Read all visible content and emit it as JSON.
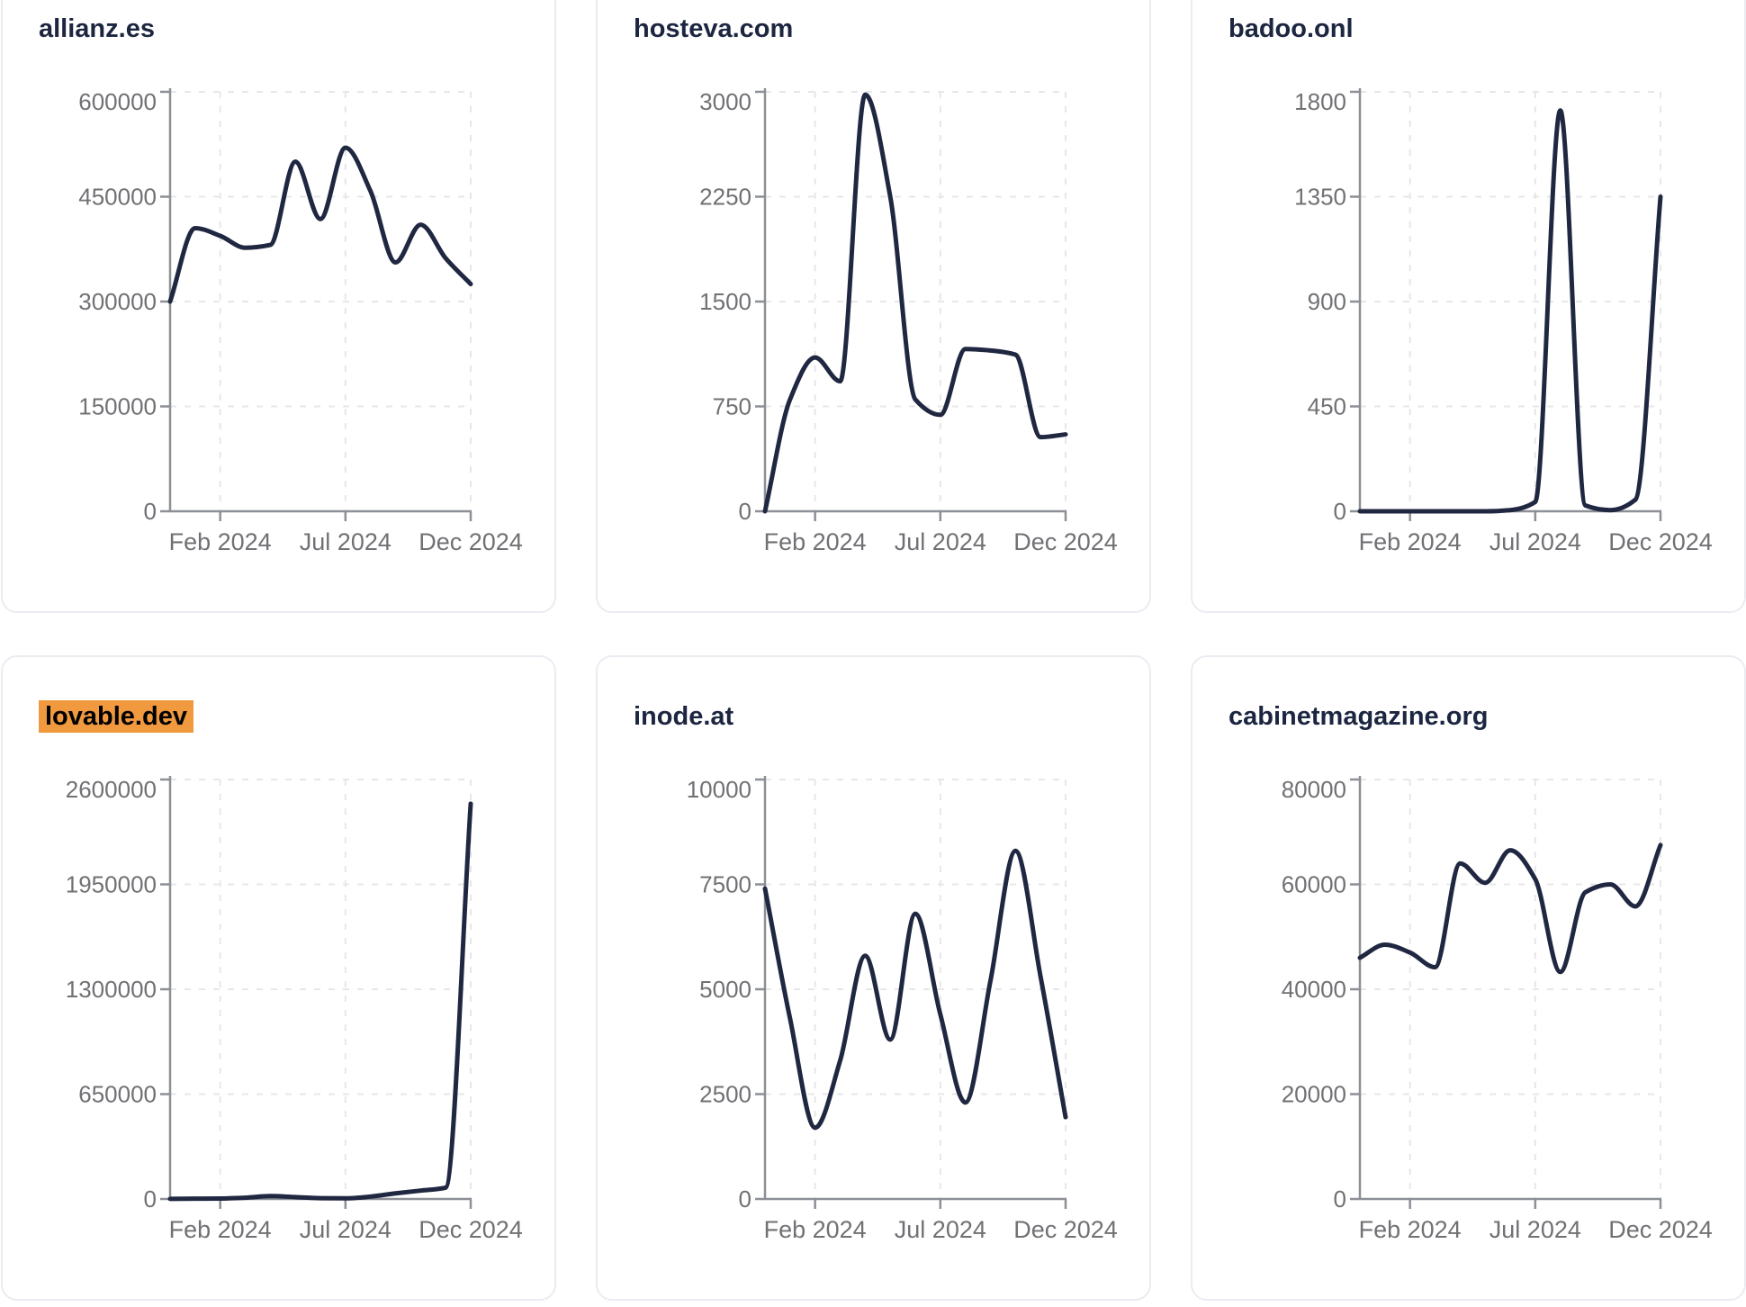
{
  "styles": {
    "page_background": "#ffffff",
    "card_background": "#ffffff",
    "card_border_color": "#eaecf2",
    "title_color": "#1d2640",
    "highlight_color": "#f0993f",
    "highlight_text_color": "#000000",
    "line_color": "#202741",
    "axis_color": "#8c8f95",
    "grid_color": "#e7e7ea",
    "tick_label_color": "#717175"
  },
  "x_axis": {
    "months": [
      "Dec 2023",
      "Jan 2024",
      "Feb 2024",
      "Mar 2024",
      "Apr 2024",
      "May 2024",
      "Jun 2024",
      "Jul 2024",
      "Aug 2024",
      "Sep 2024",
      "Oct 2024",
      "Nov 2024",
      "Dec 2024"
    ],
    "tick_labels": [
      "Feb 2024",
      "Jul 2024",
      "Dec 2024"
    ],
    "tick_indices": [
      2,
      7,
      12
    ]
  },
  "chart_data": [
    {
      "type": "line",
      "title": "allianz.es",
      "highlighted": false,
      "ylim": [
        0,
        600000
      ],
      "y_ticks": [
        0,
        150000,
        300000,
        450000,
        600000
      ],
      "x": [
        "Dec 2023",
        "Jan 2024",
        "Feb 2024",
        "Mar 2024",
        "Apr 2024",
        "May 2024",
        "Jun 2024",
        "Jul 2024",
        "Aug 2024",
        "Sep 2024",
        "Oct 2024",
        "Nov 2024",
        "Dec 2024"
      ],
      "values": [
        300000,
        405000,
        394000,
        377000,
        381000,
        500000,
        418000,
        520000,
        458000,
        356000,
        410000,
        362000,
        325000
      ]
    },
    {
      "type": "line",
      "title": "hosteva.com",
      "highlighted": false,
      "ylim": [
        0,
        3000
      ],
      "y_ticks": [
        0,
        750,
        1500,
        2250,
        3000
      ],
      "x": [
        "Dec 2023",
        "Jan 2024",
        "Feb 2024",
        "Mar 2024",
        "Apr 2024",
        "May 2024",
        "Jun 2024",
        "Jul 2024",
        "Aug 2024",
        "Sep 2024",
        "Oct 2024",
        "Nov 2024",
        "Dec 2024"
      ],
      "values": [
        0,
        800,
        1100,
        930,
        2980,
        2250,
        800,
        690,
        1160,
        1150,
        1120,
        530,
        550
      ]
    },
    {
      "type": "line",
      "title": "badoo.onl",
      "highlighted": false,
      "ylim": [
        0,
        1800
      ],
      "y_ticks": [
        0,
        450,
        900,
        1350,
        1800
      ],
      "x": [
        "Dec 2023",
        "Jan 2024",
        "Feb 2024",
        "Mar 2024",
        "Apr 2024",
        "May 2024",
        "Jun 2024",
        "Jul 2024",
        "Aug 2024",
        "Sep 2024",
        "Oct 2024",
        "Nov 2024",
        "Dec 2024"
      ],
      "values": [
        0,
        0,
        0,
        0,
        0,
        0,
        5,
        40,
        1720,
        25,
        5,
        50,
        1350
      ]
    },
    {
      "type": "line",
      "title": "lovable.dev",
      "highlighted": true,
      "ylim": [
        0,
        2600000
      ],
      "y_ticks": [
        0,
        650000,
        1300000,
        1950000,
        2600000
      ],
      "x": [
        "Dec 2023",
        "Jan 2024",
        "Feb 2024",
        "Mar 2024",
        "Apr 2024",
        "May 2024",
        "Jun 2024",
        "Jul 2024",
        "Aug 2024",
        "Sep 2024",
        "Oct 2024",
        "Nov 2024",
        "Dec 2024"
      ],
      "values": [
        1000,
        2000,
        3000,
        8000,
        18000,
        12000,
        5000,
        4000,
        15000,
        35000,
        52000,
        70000,
        2450000
      ]
    },
    {
      "type": "line",
      "title": "inode.at",
      "highlighted": false,
      "ylim": [
        0,
        10000
      ],
      "y_ticks": [
        0,
        2500,
        5000,
        7500,
        10000
      ],
      "x": [
        "Dec 2023",
        "Jan 2024",
        "Feb 2024",
        "Mar 2024",
        "Apr 2024",
        "May 2024",
        "Jun 2024",
        "Jul 2024",
        "Aug 2024",
        "Sep 2024",
        "Oct 2024",
        "Nov 2024",
        "Dec 2024"
      ],
      "values": [
        7400,
        4300,
        1700,
        3300,
        5800,
        3800,
        6800,
        4400,
        2300,
        5200,
        8300,
        5300,
        1950
      ]
    },
    {
      "type": "line",
      "title": "cabinetmagazine.org",
      "highlighted": false,
      "ylim": [
        0,
        80000
      ],
      "y_ticks": [
        0,
        20000,
        40000,
        60000,
        80000
      ],
      "x": [
        "Dec 2023",
        "Jan 2024",
        "Feb 2024",
        "Mar 2024",
        "Apr 2024",
        "May 2024",
        "Jun 2024",
        "Jul 2024",
        "Aug 2024",
        "Sep 2024",
        "Oct 2024",
        "Nov 2024",
        "Dec 2024"
      ],
      "values": [
        46000,
        48500,
        47000,
        44200,
        64000,
        60300,
        66500,
        61000,
        43300,
        58500,
        60000,
        55800,
        67500
      ]
    }
  ]
}
